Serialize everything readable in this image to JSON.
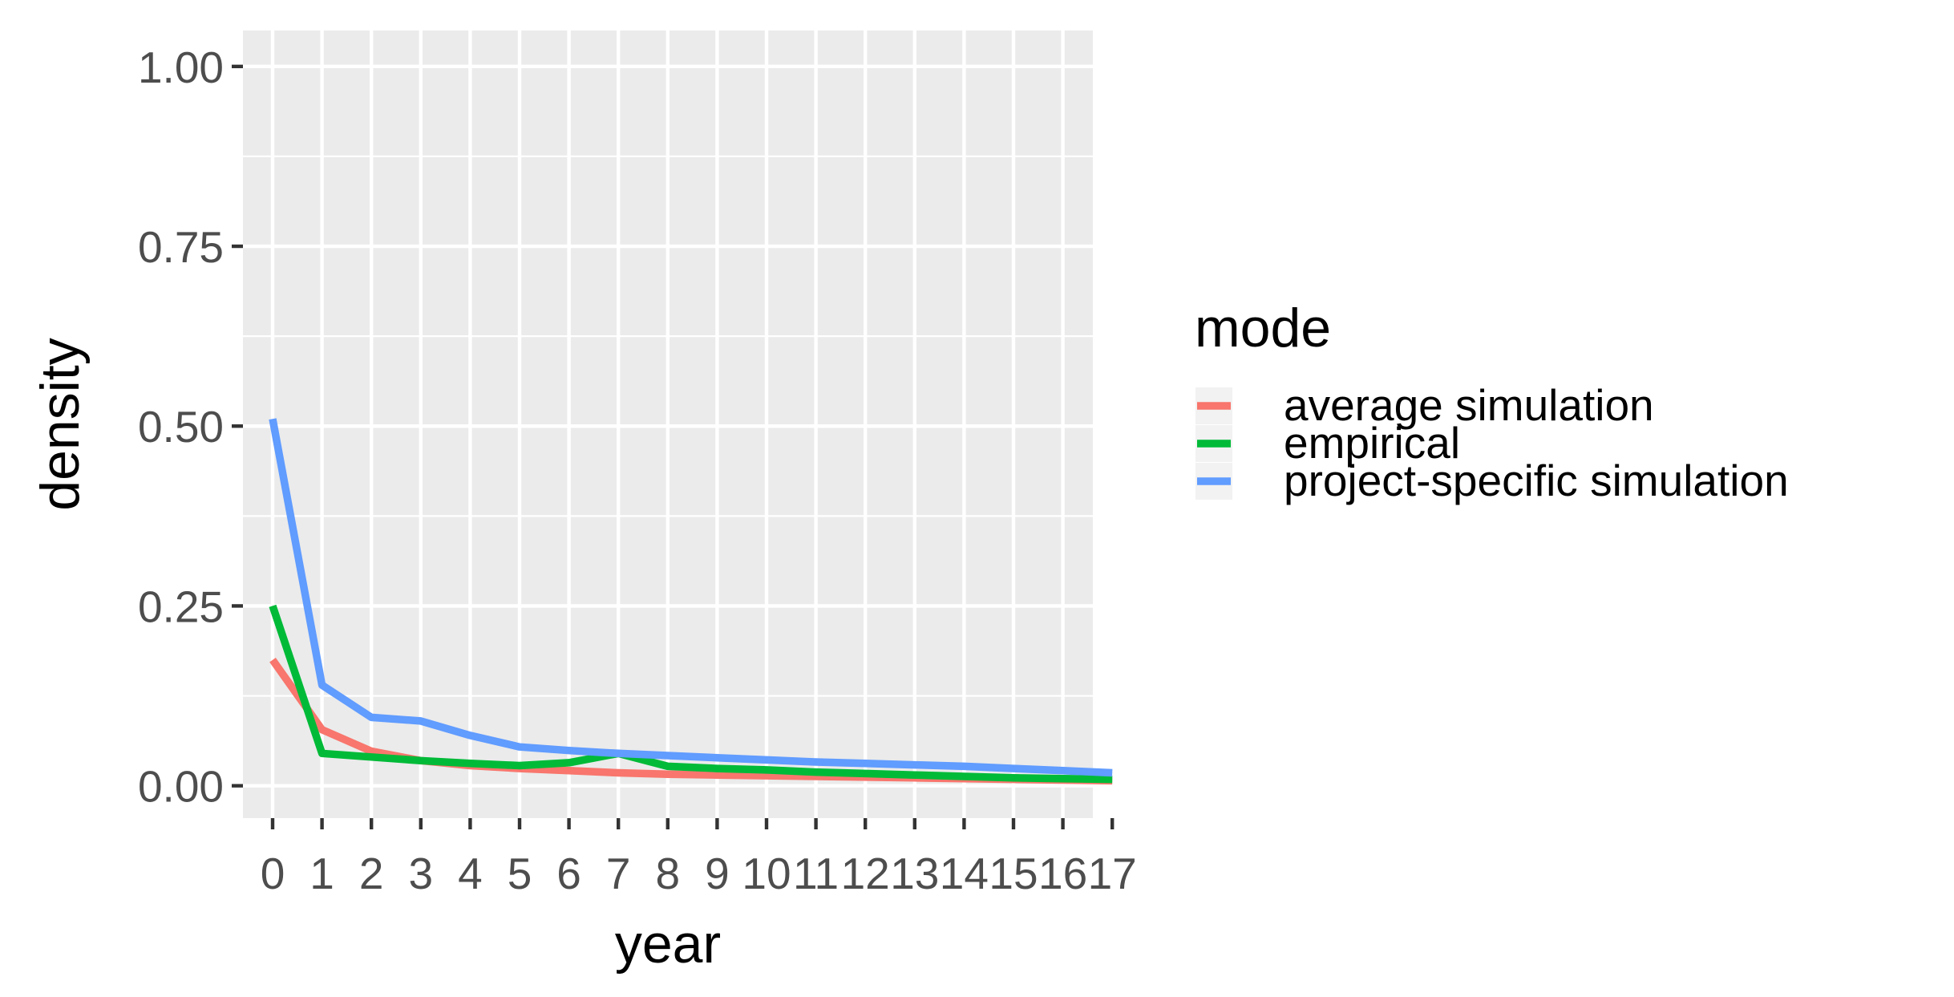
{
  "chart_data": {
    "type": "line",
    "xlabel": "year",
    "ylabel": "density",
    "categories": [
      "0",
      "1",
      "2",
      "3",
      "4",
      "5",
      "6",
      "7",
      "8",
      "9",
      "10",
      "11",
      "12",
      "13",
      "14",
      "15",
      "16",
      "17"
    ],
    "x_tick_labels": [
      "0",
      "1",
      "2",
      "3",
      "4",
      "5",
      "6",
      "7",
      "8",
      "9",
      "10",
      "11",
      "12",
      "13",
      "14",
      "15",
      "16",
      "17"
    ],
    "ylim": [
      -0.045,
      1.05
    ],
    "y_ticks": [
      0.0,
      0.25,
      0.5,
      0.75,
      1.0
    ],
    "y_tick_labels": [
      "0.00",
      "0.25",
      "0.50",
      "0.75",
      "1.00"
    ],
    "grid": true,
    "legend": {
      "title": "mode",
      "position": "right"
    },
    "series": [
      {
        "name": "average simulation",
        "color": "#F8766D",
        "values": [
          0.175,
          0.078,
          0.048,
          0.035,
          0.028,
          0.024,
          0.021,
          0.018,
          0.016,
          0.015,
          0.014,
          0.013,
          0.012,
          0.011,
          0.01,
          0.009,
          0.008,
          0.007
        ]
      },
      {
        "name": "empirical",
        "color": "#00BA38",
        "values": [
          0.25,
          0.045,
          0.04,
          0.035,
          0.031,
          0.028,
          0.032,
          0.045,
          0.027,
          0.024,
          0.022,
          0.019,
          0.017,
          0.015,
          0.013,
          0.011,
          0.01,
          0.009
        ]
      },
      {
        "name": "project-specific simulation",
        "color": "#619CFF",
        "values": [
          0.51,
          0.14,
          0.095,
          0.09,
          0.07,
          0.054,
          0.049,
          0.045,
          0.042,
          0.039,
          0.036,
          0.033,
          0.031,
          0.029,
          0.027,
          0.024,
          0.021,
          0.018
        ]
      }
    ]
  }
}
